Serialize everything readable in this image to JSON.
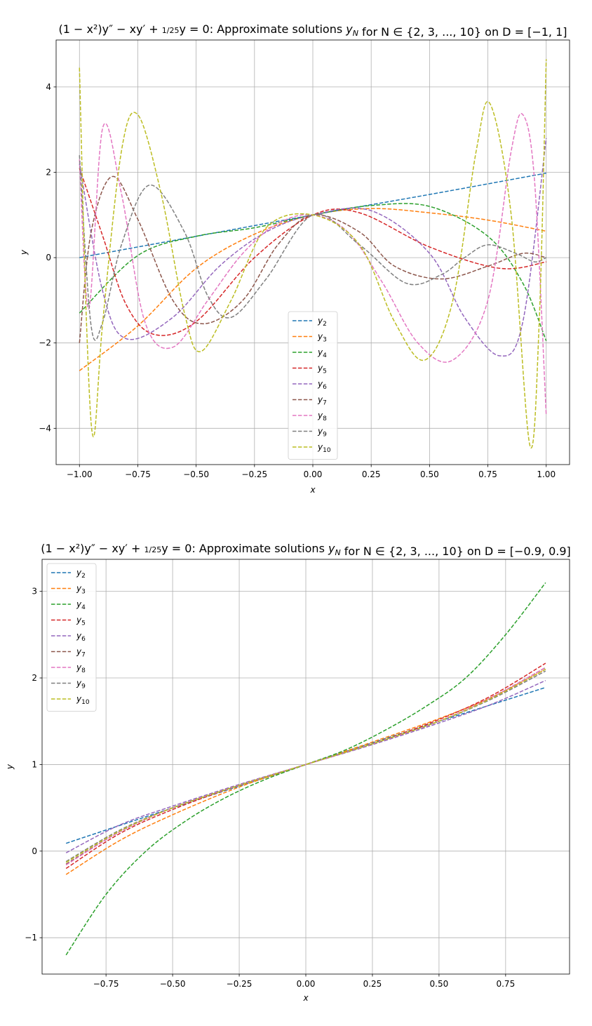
{
  "chart_data": [
    {
      "type": "line",
      "title": "(1 − x²)y″ − xy′ + 1/25 y = 0: Approximate solutions y_N for N ∈ {2, 3, ..., 10} on D = [−1, 1]",
      "xlabel": "x",
      "ylabel": "y",
      "xlim": [
        -1.1,
        1.1
      ],
      "ylim": [
        -4.85,
        5.1
      ],
      "xticks": [
        "−1.00",
        "−0.75",
        "−0.50",
        "−0.25",
        "0.00",
        "0.25",
        "0.50",
        "0.75",
        "1.00"
      ],
      "yticks": [
        "−4",
        "−2",
        "0",
        "2",
        "4"
      ],
      "grid": true,
      "legend": "lower center",
      "line_style": "dashed",
      "series": [
        {
          "name": "y2",
          "color": "#1f77b4",
          "x": [
            -1.0,
            -0.5,
            0.0,
            0.5,
            1.0
          ],
          "y": [
            0.0,
            0.5,
            1.0,
            1.48,
            1.98
          ]
        },
        {
          "name": "y3",
          "color": "#ff7f0e",
          "x": [
            -1.0,
            -0.75,
            -0.5,
            -0.25,
            0.0,
            0.25,
            0.5,
            0.75,
            1.0
          ],
          "y": [
            -2.65,
            -1.6,
            -0.25,
            0.55,
            1.0,
            1.15,
            1.05,
            0.88,
            0.62
          ]
        },
        {
          "name": "y4",
          "color": "#2ca02c",
          "x": [
            -1.0,
            -0.75,
            -0.5,
            -0.25,
            0.0,
            0.25,
            0.5,
            0.75,
            0.9,
            1.0
          ],
          "y": [
            -1.3,
            0.05,
            0.5,
            0.7,
            1.0,
            1.22,
            1.2,
            0.5,
            -0.6,
            -1.95
          ]
        },
        {
          "name": "y5",
          "color": "#d62728",
          "x": [
            -1.0,
            -0.9,
            -0.8,
            -0.68,
            -0.5,
            -0.25,
            0.0,
            0.2,
            0.5,
            0.8,
            1.0
          ],
          "y": [
            2.1,
            0.5,
            -1.1,
            -1.8,
            -1.5,
            0.0,
            1.0,
            1.05,
            0.25,
            -0.25,
            -0.1
          ]
        },
        {
          "name": "y6",
          "color": "#9467bd",
          "x": [
            -1.0,
            -0.9,
            -0.8,
            -0.6,
            -0.4,
            -0.2,
            0.0,
            0.25,
            0.5,
            0.65,
            0.8,
            0.9,
            1.0
          ],
          "y": [
            2.2,
            -0.8,
            -1.9,
            -1.4,
            -0.2,
            0.6,
            1.0,
            1.1,
            0.1,
            -1.4,
            -2.3,
            -1.5,
            2.8
          ]
        },
        {
          "name": "y7",
          "color": "#8c564b",
          "x": [
            -1.0,
            -0.95,
            -0.86,
            -0.75,
            -0.6,
            -0.47,
            -0.3,
            -0.15,
            0.0,
            0.2,
            0.35,
            0.55,
            0.75,
            0.9,
            1.0
          ],
          "y": [
            -2.0,
            0.6,
            1.9,
            0.9,
            -1.0,
            -1.55,
            -1.0,
            0.3,
            1.0,
            0.6,
            -0.2,
            -0.5,
            -0.2,
            0.1,
            0.0
          ]
        },
        {
          "name": "y8",
          "color": "#e377c2",
          "x": [
            -1.0,
            -0.96,
            -0.9,
            -0.82,
            -0.72,
            -0.6,
            -0.45,
            -0.3,
            -0.15,
            0.0,
            0.15,
            0.3,
            0.45,
            0.6,
            0.75,
            0.85,
            0.9,
            0.95,
            1.0
          ],
          "y": [
            2.3,
            -1.2,
            3.05,
            1.5,
            -1.5,
            -2.1,
            -1.0,
            0.1,
            0.8,
            1.0,
            0.6,
            -0.6,
            -2.0,
            -2.4,
            -1.0,
            2.5,
            3.35,
            1.8,
            -3.7
          ]
        },
        {
          "name": "y9",
          "color": "#7f7f7f",
          "x": [
            -1.0,
            -0.95,
            -0.9,
            -0.82,
            -0.7,
            -0.55,
            -0.45,
            -0.35,
            -0.2,
            0.0,
            0.2,
            0.4,
            0.55,
            0.65,
            0.75,
            0.87,
            0.95,
            1.0
          ],
          "y": [
            2.4,
            -1.6,
            -1.5,
            0.3,
            1.7,
            0.6,
            -0.9,
            -1.4,
            -0.5,
            1.0,
            0.3,
            -0.6,
            -0.4,
            0.0,
            0.3,
            0.1,
            -0.1,
            0.0
          ]
        },
        {
          "name": "y10",
          "color": "#bcbd22",
          "x": [
            -1.0,
            -0.97,
            -0.94,
            -0.9,
            -0.82,
            -0.75,
            -0.65,
            -0.55,
            -0.48,
            -0.35,
            -0.2,
            0.0,
            0.2,
            0.35,
            0.48,
            0.6,
            0.7,
            0.76,
            0.85,
            0.93,
            0.97,
            1.0
          ],
          "y": [
            4.45,
            -1.5,
            -4.2,
            -1.5,
            2.5,
            3.35,
            1.5,
            -1.3,
            -2.2,
            -1.0,
            0.7,
            1.0,
            0.3,
            -1.5,
            -2.4,
            -1.0,
            2.5,
            3.6,
            1.0,
            -4.4,
            -1.5,
            4.65
          ]
        }
      ]
    },
    {
      "type": "line",
      "title": "(1 − x²)y″ − xy′ + 1/25 y = 0: Approximate solutions y_N for N ∈ {2, 3, ..., 10} on D = [−0.9, 0.9]",
      "xlabel": "x",
      "ylabel": "y",
      "xlim": [
        -0.99,
        0.99
      ],
      "ylim": [
        -1.42,
        3.37
      ],
      "xticks": [
        "−0.75",
        "−0.50",
        "−0.25",
        "0.00",
        "0.25",
        "0.50",
        "0.75"
      ],
      "yticks": [
        "−1",
        "0",
        "1",
        "2",
        "3"
      ],
      "grid": true,
      "legend": "upper left",
      "line_style": "dashed",
      "series": [
        {
          "name": "y2",
          "color": "#1f77b4",
          "x": [
            -0.9,
            -0.45,
            0.0,
            0.45,
            0.9
          ],
          "y": [
            0.09,
            0.55,
            1.0,
            1.45,
            1.89
          ]
        },
        {
          "name": "y3",
          "color": "#ff7f0e",
          "x": [
            -0.9,
            -0.7,
            -0.5,
            -0.25,
            0.0,
            0.25,
            0.5,
            0.7,
            0.9
          ],
          "y": [
            -0.27,
            0.12,
            0.42,
            0.74,
            1.0,
            1.26,
            1.53,
            1.78,
            2.1
          ]
        },
        {
          "name": "y4",
          "color": "#2ca02c",
          "x": [
            -0.9,
            -0.75,
            -0.6,
            -0.45,
            -0.3,
            -0.15,
            0.0,
            0.15,
            0.3,
            0.45,
            0.6,
            0.75,
            0.9
          ],
          "y": [
            -1.2,
            -0.5,
            0.0,
            0.35,
            0.62,
            0.83,
            1.0,
            1.17,
            1.4,
            1.67,
            2.0,
            2.5,
            3.1
          ]
        },
        {
          "name": "y5",
          "color": "#d62728",
          "x": [
            -0.9,
            -0.7,
            -0.5,
            -0.25,
            0.0,
            0.25,
            0.5,
            0.7,
            0.9
          ],
          "y": [
            -0.2,
            0.2,
            0.48,
            0.76,
            1.0,
            1.24,
            1.52,
            1.8,
            2.17
          ]
        },
        {
          "name": "y6",
          "color": "#9467bd",
          "x": [
            -0.9,
            -0.7,
            -0.5,
            -0.25,
            0.0,
            0.25,
            0.5,
            0.7,
            0.9
          ],
          "y": [
            -0.02,
            0.3,
            0.52,
            0.77,
            1.0,
            1.23,
            1.48,
            1.7,
            1.97
          ]
        },
        {
          "name": "y7",
          "color": "#8c564b",
          "x": [
            -0.9,
            -0.7,
            -0.5,
            -0.25,
            0.0,
            0.25,
            0.5,
            0.7,
            0.9
          ],
          "y": [
            -0.15,
            0.22,
            0.5,
            0.76,
            1.0,
            1.24,
            1.5,
            1.78,
            2.12
          ]
        },
        {
          "name": "y8",
          "color": "#e377c2",
          "x": [
            -0.9,
            -0.7,
            -0.5,
            -0.25,
            0.0,
            0.25,
            0.5,
            0.7,
            0.9
          ],
          "y": [
            -0.16,
            0.22,
            0.5,
            0.76,
            1.0,
            1.24,
            1.5,
            1.78,
            2.12
          ]
        },
        {
          "name": "y9",
          "color": "#7f7f7f",
          "x": [
            -0.9,
            -0.7,
            -0.5,
            -0.25,
            0.0,
            0.25,
            0.5,
            0.7,
            0.9
          ],
          "y": [
            -0.12,
            0.24,
            0.5,
            0.76,
            1.0,
            1.24,
            1.5,
            1.76,
            2.08
          ]
        },
        {
          "name": "y10",
          "color": "#bcbd22",
          "x": [
            -0.9,
            -0.7,
            -0.5,
            -0.25,
            0.0,
            0.25,
            0.5,
            0.7,
            0.9
          ],
          "y": [
            -0.13,
            0.23,
            0.5,
            0.76,
            1.0,
            1.24,
            1.5,
            1.77,
            2.1
          ]
        }
      ]
    }
  ]
}
